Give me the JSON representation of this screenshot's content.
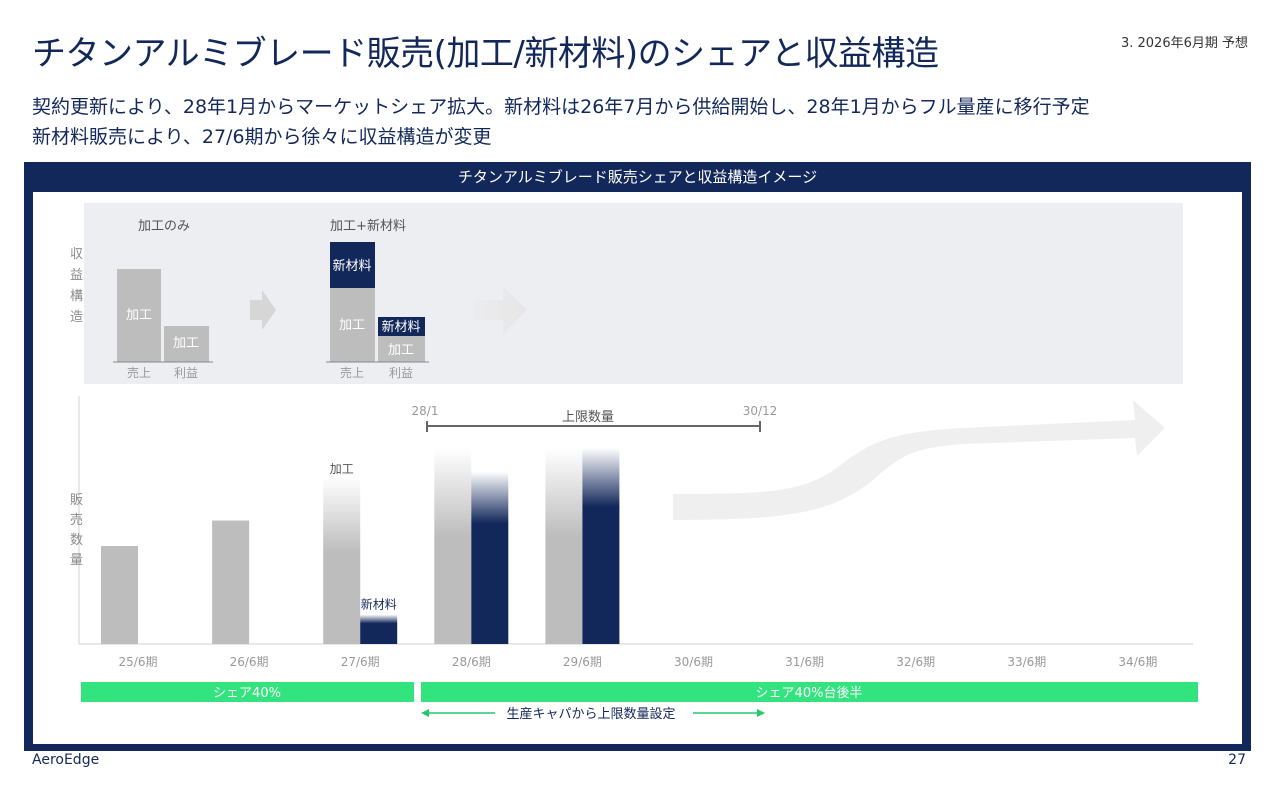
{
  "header": {
    "title": "チタンアルミブレード販売(加工/新材料)のシェアと収益構造",
    "tag": "3. 2026年6月期 予想",
    "subtitle_line1": "契約更新により、28年1月からマーケットシェア拡大。新材料は26年7月から供給開始し、28年1月からフル量産に移行予定",
    "subtitle_line2": "新材料販売により、27/6期から徐々に収益構造が変更"
  },
  "panel": {
    "title": "チタンアルミブレード販売シェアと収益構造イメージ"
  },
  "profit_structure": {
    "ylabel": "収益構造",
    "left_group_label": "加工のみ",
    "right_group_label": "加工+新材料",
    "bar_label_processing": "加工",
    "bar_label_material": "新材料",
    "x_sales": "売上",
    "x_profit": "利益"
  },
  "chart_data": {
    "type": "bar",
    "ylabel": "販売数量",
    "categories": [
      "25/6期",
      "26/6期",
      "27/6期",
      "28/6期",
      "29/6期",
      "30/6期",
      "31/6期",
      "32/6期",
      "33/6期",
      "34/6期"
    ],
    "series": [
      {
        "name": "加工",
        "values": [
          50,
          63,
          85,
          100,
          100,
          null,
          null,
          null,
          null,
          null
        ]
      },
      {
        "name": "新材料",
        "values": [
          null,
          null,
          15,
          88,
          100,
          null,
          null,
          null,
          null,
          null
        ]
      }
    ],
    "series_labels": {
      "processing": "加工",
      "material": "新材料"
    },
    "colors": {
      "processing": "#bdbdbd",
      "material": "#13285a",
      "share": "#33e37e"
    },
    "ylim": [
      0,
      100
    ],
    "cap_annotation": {
      "label": "上限数量",
      "start": "28/1",
      "end": "30/12"
    }
  },
  "share_bands": {
    "band1": "シェア40%",
    "band2": "シェア40%台後半",
    "capacity_note": "生産キャパから上限数量設定"
  },
  "footer": {
    "company": "AeroEdge",
    "page": "27"
  }
}
